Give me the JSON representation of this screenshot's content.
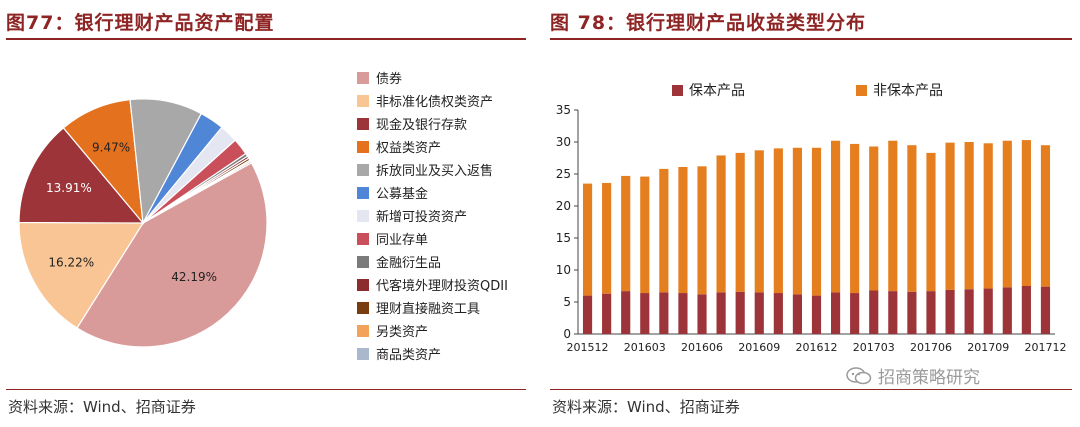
{
  "left": {
    "title": "图77：银行理财产品资产配置",
    "source": "资料来源：Wind、招商证券"
  },
  "right": {
    "title": "图 78：银行理财产品收益类型分布",
    "source": "资料来源：Wind、招商证券"
  },
  "watermark": {
    "text": "招商策略研究",
    "icon": "wechat-icon"
  },
  "chart_data": [
    {
      "type": "pie",
      "title": "银行理财产品资产配置",
      "legend_position": "right",
      "slices": [
        {
          "label": "债券",
          "value": 42.19,
          "color": "#d99a9a",
          "show_label": "42.19%"
        },
        {
          "label": "非标准化债权类资产",
          "value": 16.22,
          "color": "#f9c594",
          "show_label": "16.22%"
        },
        {
          "label": "现金及银行存款",
          "value": 13.91,
          "color": "#9c3439",
          "show_label": "13.91%"
        },
        {
          "label": "权益类资产",
          "value": 9.47,
          "color": "#e4711d",
          "show_label": "9.47%"
        },
        {
          "label": "拆放同业及买入返售",
          "value": 9.5,
          "color": "#a8a8a8",
          "show_label": ""
        },
        {
          "label": "公募基金",
          "value": 3.2,
          "color": "#4f86d6",
          "show_label": ""
        },
        {
          "label": "新增可投资资产",
          "value": 2.4,
          "color": "#e4e7f1",
          "show_label": ""
        },
        {
          "label": "同业存单",
          "value": 2.2,
          "color": "#c9505a",
          "show_label": ""
        },
        {
          "label": "金融衍生品",
          "value": 0.4,
          "color": "#7b7b7b",
          "show_label": ""
        },
        {
          "label": "代客境外理财投资QDII",
          "value": 0.3,
          "color": "#8c2c2e",
          "show_label": ""
        },
        {
          "label": "理财直接融资工具",
          "value": 0.3,
          "color": "#7a3d10",
          "show_label": ""
        },
        {
          "label": "另类资产",
          "value": 0.2,
          "color": "#f3a25a",
          "show_label": ""
        },
        {
          "label": "商品类资产",
          "value": 0.2,
          "color": "#a9b8cc",
          "show_label": ""
        }
      ]
    },
    {
      "type": "bar",
      "stacked": true,
      "title": "银行理财产品收益类型分布",
      "legend_position": "top",
      "categories": [
        "201512",
        "201601",
        "201602",
        "201603",
        "201604",
        "201605",
        "201606",
        "201607",
        "201608",
        "201609",
        "201610",
        "201611",
        "201612",
        "201701",
        "201702",
        "201703",
        "201704",
        "201705",
        "201706",
        "201707",
        "201708",
        "201709",
        "201710",
        "201711",
        "201712"
      ],
      "tick_labels": [
        "201512",
        "201603",
        "201606",
        "201609",
        "201612",
        "201703",
        "201706",
        "201709",
        "201712"
      ],
      "ylim": [
        0,
        35
      ],
      "yticks": [
        0,
        5,
        10,
        15,
        20,
        25,
        30,
        35
      ],
      "grid": false,
      "series": [
        {
          "name": "保本产品",
          "color": "#9c3439",
          "values": [
            6.0,
            6.3,
            6.7,
            6.4,
            6.5,
            6.4,
            6.2,
            6.5,
            6.6,
            6.5,
            6.4,
            6.2,
            6.0,
            6.5,
            6.4,
            6.8,
            6.7,
            6.6,
            6.7,
            6.9,
            7.0,
            7.1,
            7.3,
            7.5,
            7.4
          ]
        },
        {
          "name": "非保本产品",
          "color": "#e57e1f",
          "values": [
            17.5,
            17.3,
            18.0,
            18.2,
            19.3,
            19.7,
            20.0,
            21.4,
            21.7,
            22.2,
            22.6,
            22.9,
            23.1,
            23.7,
            23.3,
            22.5,
            23.5,
            22.9,
            21.6,
            23.0,
            23.0,
            22.7,
            22.9,
            22.8,
            22.1
          ]
        }
      ]
    }
  ]
}
